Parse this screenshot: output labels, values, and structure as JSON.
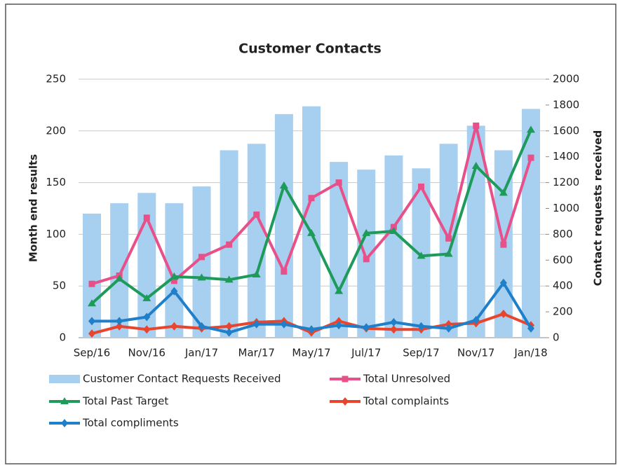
{
  "chart_data": {
    "type": "bar_line",
    "title": "Customer Contacts",
    "y_label": "Month end results",
    "y2_label": "Contact requests received",
    "categories": [
      "Sep/16",
      null,
      "Nov/16",
      null,
      "Jan/17",
      null,
      "Mar/17",
      null,
      "May/17",
      null,
      "Jul/17",
      null,
      "Sep/17",
      null,
      "Nov/17",
      null,
      "Jan/18"
    ],
    "ylim": [
      0,
      250
    ],
    "yticks": [
      0,
      50,
      100,
      150,
      200,
      250
    ],
    "y2lim": [
      0,
      2000
    ],
    "y2ticks": [
      0,
      200,
      400,
      600,
      800,
      1000,
      1200,
      1400,
      1600,
      1800,
      2000
    ],
    "series": [
      {
        "name": "Customer Contact Requests Received",
        "type": "bar",
        "axis": "y2",
        "color": "#a7cff0",
        "values": [
          960,
          1040,
          1120,
          1040,
          1170,
          1450,
          1500,
          1730,
          1790,
          1360,
          1300,
          1410,
          1310,
          1500,
          1640,
          1450,
          1770
        ]
      },
      {
        "name": "Total Unresolved",
        "type": "line",
        "marker": "square",
        "color": "#e8508a",
        "values": [
          52,
          60,
          116,
          55,
          78,
          90,
          119,
          64,
          135,
          150,
          76,
          107,
          146,
          96,
          205,
          90,
          174
        ]
      },
      {
        "name": "Total Past Target",
        "type": "line",
        "marker": "triangle",
        "color": "#1e9a5a",
        "values": [
          33,
          57,
          38,
          59,
          58,
          56,
          61,
          147,
          101,
          45,
          101,
          103,
          79,
          81,
          166,
          140,
          201
        ]
      },
      {
        "name": "Total complaints",
        "type": "line",
        "marker": "diamond",
        "color": "#e8442e",
        "values": [
          4,
          11,
          8,
          11,
          9,
          11,
          15,
          16,
          5,
          16,
          9,
          8,
          8,
          13,
          14,
          23,
          12
        ]
      },
      {
        "name": "Total compliments",
        "type": "line",
        "marker": "diamond",
        "color": "#1f7fc9",
        "values": [
          16,
          16,
          20,
          45,
          11,
          5,
          13,
          13,
          8,
          12,
          10,
          15,
          11,
          9,
          17,
          53,
          9
        ]
      }
    ],
    "grid": true
  }
}
